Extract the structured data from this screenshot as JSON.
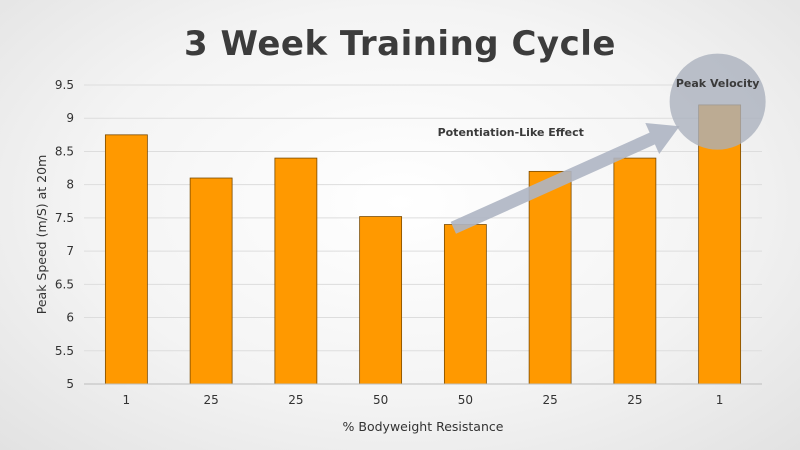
{
  "title": "3 Week Training Cycle",
  "colors": {
    "bar": "#FF9900",
    "bar_stroke": "#7a4a00",
    "grid": "#dddddd",
    "arrow": "#aeb5c3",
    "circle": "#a9afbd",
    "text": "#333333"
  },
  "chart_data": {
    "type": "bar",
    "title": "3 Week Training Cycle",
    "xlabel": "% Bodyweight Resistance",
    "ylabel": "Peak Speed (m/S) at 20m",
    "categories": [
      "1",
      "25",
      "25",
      "50",
      "50",
      "25",
      "25",
      "1"
    ],
    "values": [
      8.75,
      8.1,
      8.4,
      7.52,
      7.4,
      8.2,
      8.4,
      9.2
    ],
    "ylim": [
      5,
      9.5
    ],
    "yticks": [
      "5",
      "5.5",
      "6",
      "6.5",
      "7",
      "7.5",
      "8",
      "8.5",
      "9",
      "9.5"
    ],
    "grid": true,
    "annotations": {
      "arrow_label": "Potentiation-Like Effect",
      "circle_label": "Peak Velocity"
    }
  }
}
